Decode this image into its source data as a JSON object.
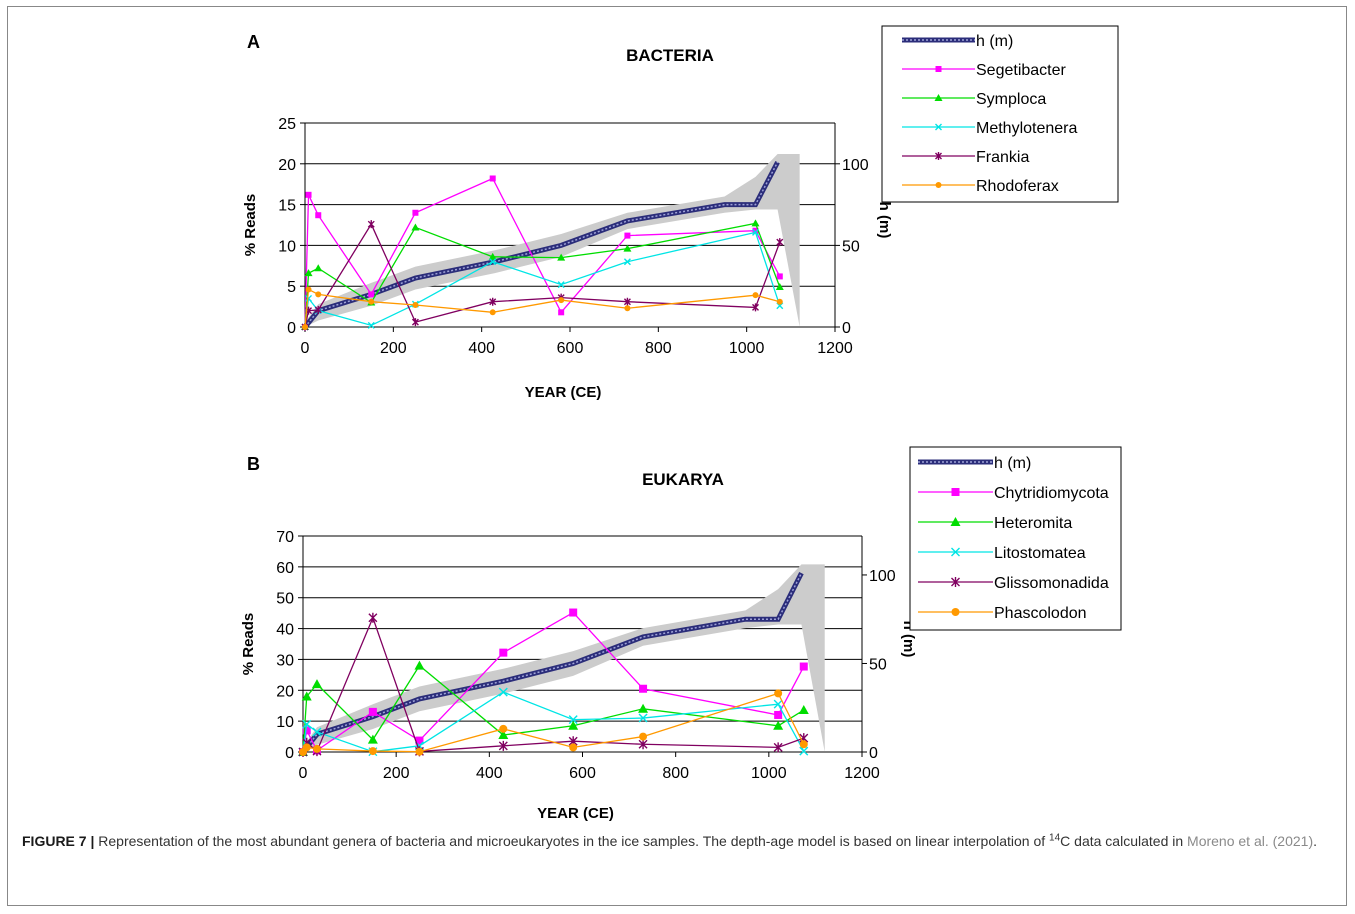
{
  "caption": {
    "label": "FIGURE 7 |",
    "text_part1": " Representation of the most abundant genera of bacteria and microeukaryotes in the ice samples. The depth-age model is based on linear interpolation of ",
    "superscript": "14",
    "text_part2": "C data calculated in ",
    "citation": "Moreno et al. (2021)",
    "text_part3": "."
  },
  "chart_data": [
    {
      "type": "line",
      "panel_label": "A",
      "title": "BACTERIA",
      "xlabel": "YEAR (CE)",
      "ylabel": "% Reads",
      "y2label": "h (m)",
      "xlim": [
        0,
        1200
      ],
      "xticks": [
        0,
        200,
        400,
        600,
        800,
        1000,
        1200
      ],
      "ylim": [
        0,
        25
      ],
      "yticks": [
        0,
        5,
        10,
        15,
        20,
        25
      ],
      "y2lim": [
        0,
        125
      ],
      "y2ticks": [
        0,
        50,
        100
      ],
      "grid": "horizontal",
      "legend": "top-right, outside",
      "depth_series": {
        "name": "h (m)",
        "color": "#2b2d7a",
        "x": [
          0,
          30,
          150,
          250,
          430,
          580,
          730,
          950,
          1020,
          1070
        ],
        "y": [
          0,
          10,
          20,
          30,
          40,
          50,
          65,
          75,
          75,
          101
        ]
      },
      "uncertainty_band": {
        "color": "#cccccc",
        "x": [
          0,
          30,
          150,
          250,
          430,
          580,
          730,
          950,
          1020,
          1070,
          1120
        ],
        "upper": [
          3,
          14,
          27,
          37,
          47,
          57,
          70,
          80,
          92,
          106,
          106
        ],
        "lower": [
          0,
          4,
          13,
          23,
          33,
          43,
          60,
          70,
          72,
          72,
          0
        ]
      },
      "series": [
        {
          "name": "Segetibacter",
          "color": "#ff00ff",
          "marker": "square",
          "x": [
            0,
            8,
            30,
            150,
            250,
            425,
            580,
            730,
            1020,
            1075
          ],
          "y": [
            0,
            16.2,
            13.7,
            4.0,
            14.0,
            18.2,
            1.8,
            11.2,
            11.8,
            6.2
          ]
        },
        {
          "name": "Symploca",
          "color": "#00dd00",
          "marker": "triangle",
          "x": [
            0,
            8,
            30,
            150,
            250,
            425,
            580,
            730,
            1020,
            1075
          ],
          "y": [
            0,
            6.6,
            7.2,
            3.0,
            12.2,
            8.6,
            8.5,
            9.6,
            12.7,
            4.9
          ]
        },
        {
          "name": "Methylotenera",
          "color": "#00e5e5",
          "marker": "x",
          "x": [
            0,
            8,
            30,
            150,
            250,
            425,
            580,
            730,
            1020,
            1075
          ],
          "y": [
            0,
            3.5,
            2.0,
            0.2,
            2.8,
            8.0,
            5.2,
            8.0,
            11.6,
            2.6
          ]
        },
        {
          "name": "Frankia",
          "color": "#800060",
          "marker": "asterisk",
          "x": [
            0,
            8,
            30,
            150,
            250,
            425,
            580,
            730,
            1020,
            1075
          ],
          "y": [
            0,
            2.0,
            2.1,
            12.6,
            0.6,
            3.1,
            3.6,
            3.1,
            2.4,
            10.4
          ]
        },
        {
          "name": "Rhodoferax",
          "color": "#ff9900",
          "marker": "circle",
          "x": [
            0,
            8,
            30,
            150,
            250,
            425,
            580,
            730,
            1020,
            1075
          ],
          "y": [
            0,
            4.6,
            4.0,
            3.1,
            2.7,
            1.8,
            3.3,
            2.3,
            3.9,
            3.1
          ]
        }
      ]
    },
    {
      "type": "line",
      "panel_label": "B",
      "title": "EUKARYA",
      "xlabel": "YEAR (CE)",
      "ylabel": "% Reads",
      "y2label": "h (m)",
      "xlim": [
        0,
        1200
      ],
      "xticks": [
        0,
        200,
        400,
        600,
        800,
        1000,
        1200
      ],
      "ylim": [
        0,
        70
      ],
      "yticks": [
        0,
        10,
        20,
        30,
        40,
        50,
        60,
        70
      ],
      "y2lim": [
        0,
        122
      ],
      "y2ticks": [
        0,
        50,
        100
      ],
      "grid": "horizontal",
      "legend": "top-right, outside",
      "depth_series": {
        "name": "h (m)",
        "color": "#2b2d7a",
        "x": [
          0,
          30,
          150,
          250,
          430,
          580,
          730,
          950,
          1020,
          1070
        ],
        "y": [
          0,
          10,
          20,
          30,
          40,
          50,
          65,
          75,
          75,
          101
        ]
      },
      "uncertainty_band": {
        "color": "#cccccc",
        "x": [
          0,
          30,
          150,
          250,
          430,
          580,
          730,
          950,
          1020,
          1070,
          1120
        ],
        "upper": [
          3,
          14,
          27,
          37,
          47,
          57,
          70,
          80,
          92,
          106,
          106
        ],
        "lower": [
          0,
          4,
          13,
          23,
          33,
          43,
          60,
          70,
          72,
          72,
          0
        ]
      },
      "series": [
        {
          "name": "Chytridiomycota",
          "color": "#ff00ff",
          "marker": "square",
          "x": [
            0,
            8,
            30,
            150,
            250,
            430,
            580,
            730,
            1020,
            1075
          ],
          "y": [
            0,
            7.0,
            0.5,
            13.0,
            3.7,
            32.2,
            45.2,
            20.5,
            12.0,
            27.7
          ]
        },
        {
          "name": "Heteromita",
          "color": "#00dd00",
          "marker": "triangle",
          "x": [
            0,
            8,
            30,
            150,
            250,
            430,
            580,
            730,
            1020,
            1075
          ],
          "y": [
            0,
            18.0,
            22.0,
            4.0,
            28.0,
            5.5,
            8.5,
            14.0,
            8.5,
            13.6
          ]
        },
        {
          "name": "Litostomatea",
          "color": "#00e5e5",
          "marker": "x",
          "x": [
            0,
            8,
            30,
            150,
            250,
            430,
            580,
            730,
            1020,
            1075
          ],
          "y": [
            0,
            9.0,
            6.5,
            0.1,
            2.0,
            19.4,
            10.5,
            11.0,
            15.5,
            0.3
          ]
        },
        {
          "name": "Glissomonadida",
          "color": "#800060",
          "marker": "asterisk",
          "x": [
            0,
            8,
            30,
            150,
            250,
            430,
            580,
            730,
            1020,
            1075
          ],
          "y": [
            0,
            3.0,
            0.3,
            43.5,
            0.2,
            2.0,
            3.5,
            2.5,
            1.5,
            4.5
          ]
        },
        {
          "name": "Phascolodon",
          "color": "#ff9900",
          "marker": "circle",
          "x": [
            0,
            8,
            30,
            150,
            250,
            430,
            580,
            730,
            1020,
            1075
          ],
          "y": [
            0,
            1.5,
            1.0,
            0.3,
            0.1,
            7.5,
            1.5,
            5.0,
            19.0,
            2.5
          ]
        }
      ]
    }
  ]
}
